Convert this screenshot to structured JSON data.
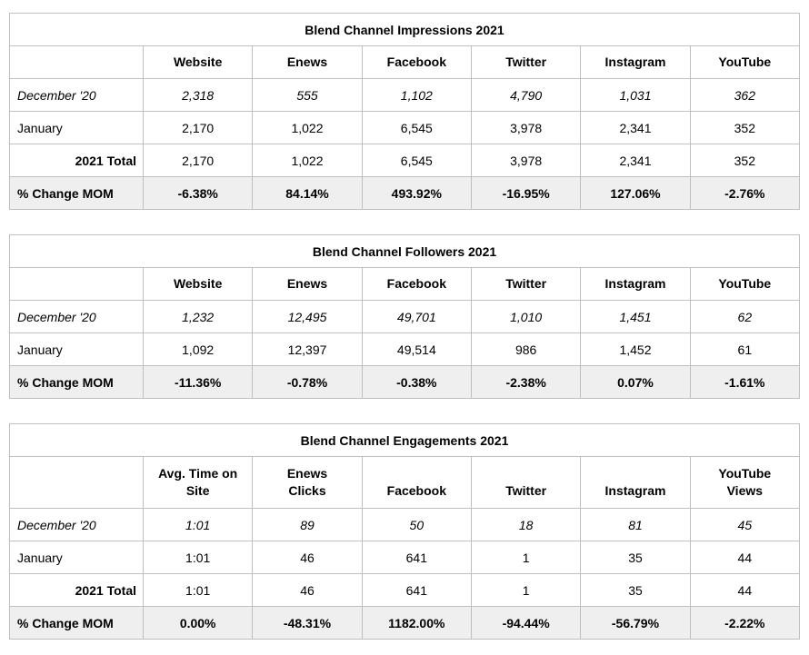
{
  "page": {
    "background_color": "#ffffff",
    "border_color": "#bfbfbf",
    "shaded_row_color": "#efefef",
    "text_color": "#000000"
  },
  "tables": [
    {
      "id": "impressions",
      "title": "Blend Channel Impressions 2021",
      "columns": [
        "",
        "Website",
        "Enews",
        "Facebook",
        "Twitter",
        "Instagram",
        "YouTube"
      ],
      "rows": [
        {
          "label": "December '20",
          "style": "december",
          "values": [
            "2,318",
            "555",
            "1,102",
            "4,790",
            "1,031",
            "362"
          ]
        },
        {
          "label": "January",
          "style": "normal",
          "values": [
            "2,170",
            "1,022",
            "6,545",
            "3,978",
            "2,341",
            "352"
          ]
        },
        {
          "label": "2021 Total",
          "style": "total",
          "values": [
            "2,170",
            "1,022",
            "6,545",
            "3,978",
            "2,341",
            "352"
          ]
        },
        {
          "label": "% Change MOM",
          "style": "change",
          "values": [
            "-6.38%",
            "84.14%",
            "493.92%",
            "-16.95%",
            "127.06%",
            "-2.76%"
          ]
        }
      ]
    },
    {
      "id": "followers",
      "title": "Blend Channel Followers 2021",
      "columns": [
        "",
        "Website",
        "Enews",
        "Facebook",
        "Twitter",
        "Instagram",
        "YouTube"
      ],
      "rows": [
        {
          "label": "December '20",
          "style": "december",
          "values": [
            "1,232",
            "12,495",
            "49,701",
            "1,010",
            "1,451",
            "62"
          ]
        },
        {
          "label": "January",
          "style": "normal",
          "values": [
            "1,092",
            "12,397",
            "49,514",
            "986",
            "1,452",
            "61"
          ]
        },
        {
          "label": "% Change MOM",
          "style": "change",
          "values": [
            "-11.36%",
            "-0.78%",
            "-0.38%",
            "-2.38%",
            "0.07%",
            "-1.61%"
          ]
        }
      ]
    },
    {
      "id": "engagements",
      "title": "Blend Channel Engagements 2021",
      "columns": [
        "",
        "Avg. Time on\nSite",
        "Enews\nClicks",
        "Facebook",
        "Twitter",
        "Instagram",
        "YouTube\nViews"
      ],
      "rows": [
        {
          "label": "December '20",
          "style": "december",
          "values": [
            "1:01",
            "89",
            "50",
            "18",
            "81",
            "45"
          ]
        },
        {
          "label": "January",
          "style": "normal",
          "values": [
            "1:01",
            "46",
            "641",
            "1",
            "35",
            "44"
          ]
        },
        {
          "label": "2021 Total",
          "style": "total",
          "values": [
            "1:01",
            "46",
            "641",
            "1",
            "35",
            "44"
          ]
        },
        {
          "label": "% Change MOM",
          "style": "change",
          "values": [
            "0.00%",
            "-48.31%",
            "1182.00%",
            "-94.44%",
            "-56.79%",
            "-2.22%"
          ]
        }
      ]
    }
  ]
}
